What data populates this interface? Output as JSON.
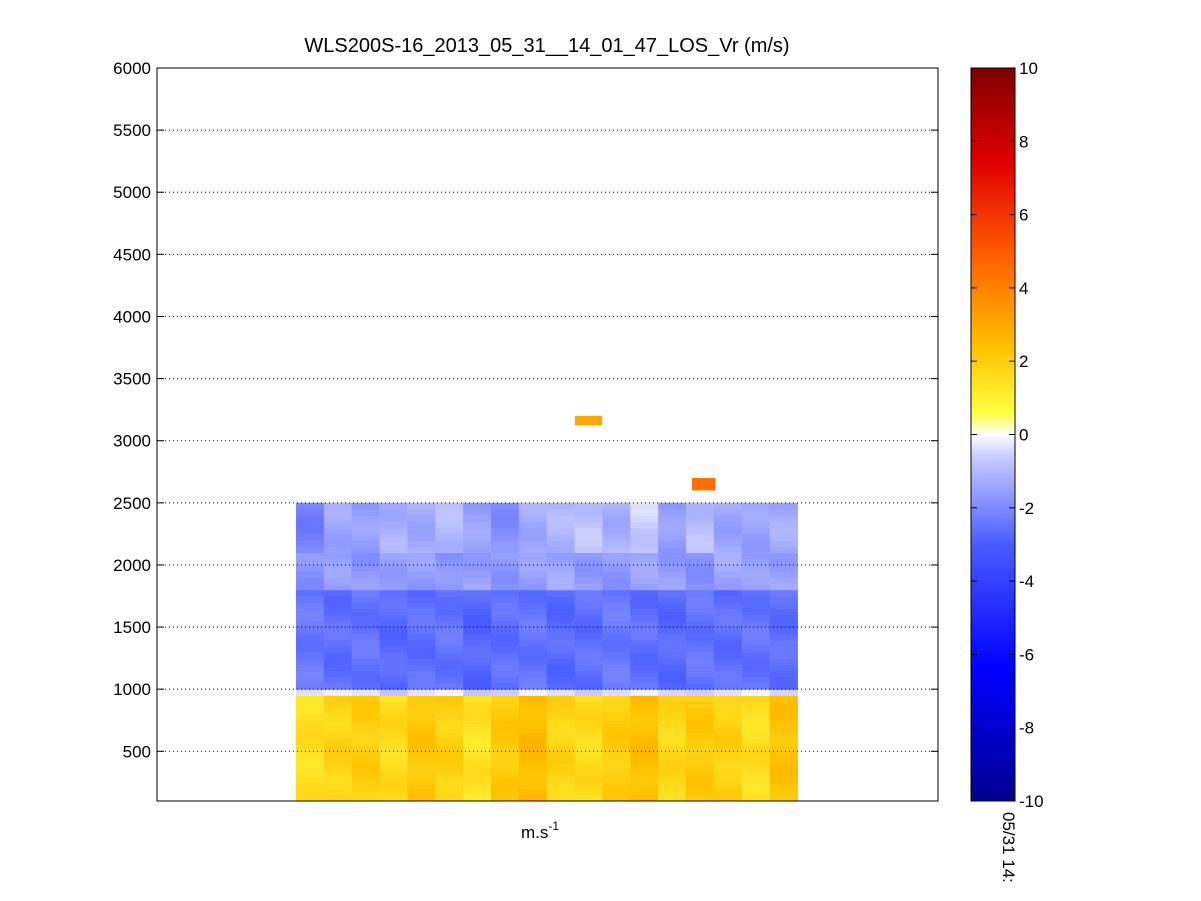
{
  "chart_data": {
    "type": "heatmap",
    "title": "WLS200S-16_2013_05_31__14_01_47_LOS_Vr (m/s)",
    "xlabel": "m.s",
    "xlabel_sup": "-1",
    "ylabel": "",
    "ylim": [
      100,
      6000
    ],
    "yticks": [
      500,
      1000,
      1500,
      2000,
      2500,
      3000,
      3500,
      4000,
      4500,
      5000,
      5500,
      6000
    ],
    "grid": "horizontal dotted",
    "colorbar": {
      "clim": [
        -10,
        10
      ],
      "ticks": [
        -10,
        -8,
        -6,
        -4,
        -2,
        0,
        2,
        4,
        6,
        8,
        10
      ],
      "label": "05/31 14:"
    },
    "bins": {
      "columns": 18,
      "column_x_range": [
        0.178,
        0.82
      ],
      "height_min": 100,
      "height_step": 50
    },
    "profiles": [
      {
        "height_range": [
          100,
          950
        ],
        "values": [
          1.5,
          1.8,
          2.0,
          1.6,
          2.2,
          1.9,
          1.4,
          2.1,
          2.5,
          1.8,
          1.6,
          2.0,
          2.4,
          1.7,
          2.1,
          1.9,
          1.5,
          2.3
        ]
      },
      {
        "height_range": [
          950,
          1000
        ],
        "values": [
          -0.3,
          -0.4,
          -0.3,
          -0.5,
          -0.4,
          -0.3,
          -0.6,
          -0.4,
          -0.3,
          -0.5,
          -0.4,
          -0.3,
          -0.4,
          -0.5,
          -0.3,
          -0.4,
          -0.3,
          -0.4
        ]
      },
      {
        "height_range": [
          1000,
          1800
        ],
        "values": [
          -2.4,
          -2.6,
          -2.5,
          -2.7,
          -2.6,
          -2.5,
          -2.8,
          -2.6,
          -2.5,
          -2.7,
          -2.6,
          -2.4,
          -2.6,
          -2.7,
          -2.5,
          -2.6,
          -2.5,
          -2.6
        ]
      },
      {
        "height_range": [
          1800,
          2100
        ],
        "values": [
          -1.8,
          -1.6,
          -1.7,
          -1.5,
          -1.6,
          -1.8,
          -1.5,
          -1.7,
          -1.6,
          -1.4,
          -1.6,
          -1.7,
          -1.5,
          -1.6,
          -1.8,
          -1.4,
          -1.6,
          -1.5
        ]
      },
      {
        "height_range": [
          2100,
          2500
        ],
        "values": [
          -2.2,
          -1.4,
          -1.6,
          -1.2,
          -1.3,
          -1.0,
          -1.5,
          -1.9,
          -1.3,
          -1.1,
          -0.8,
          -1.2,
          -0.6,
          -1.6,
          -0.9,
          -1.4,
          -1.5,
          -1.3
        ]
      }
    ],
    "isolated_cells": [
      {
        "height_range": [
          3125,
          3200
        ],
        "x_range": [
          0.535,
          0.57
        ],
        "value": 3.0
      },
      {
        "height_range": [
          2600,
          2700
        ],
        "x_range": [
          0.685,
          0.715
        ],
        "value": 4.5
      }
    ]
  }
}
